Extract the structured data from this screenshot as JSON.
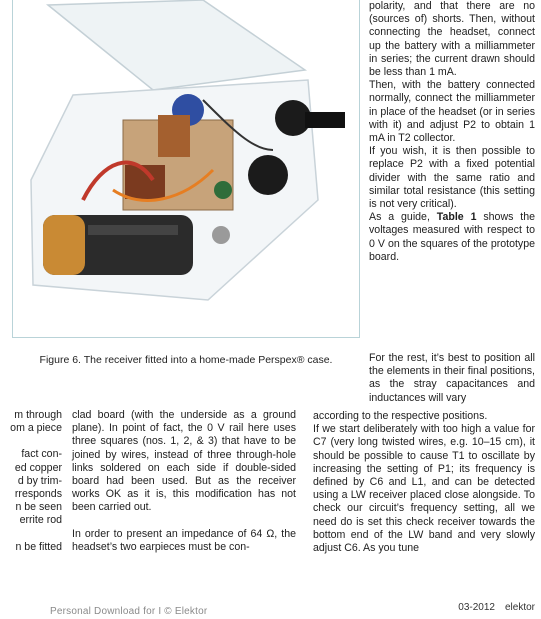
{
  "figure": {
    "caption": "Figure 6. The receiver fitted into a home-made Perspex® case.",
    "alt": "photo-receiver-in-perspex-case"
  },
  "right_column": {
    "paragraphs": [
      "polarity, and that there are no (sources of) shorts. Then, without connecting the headset, connect up the battery with a milliammeter in series; the current drawn should be less than 1 mA.",
      "Then, with the battery connected normally, connect the milliammeter in place of the headset (or in series with it) and adjust P2 to obtain 1 mA in T2 collector.",
      "If you wish, it is then possible to replace P2 with a fixed potential divider with the same ratio and similar total resistance (this setting is not very critical)."
    ],
    "p4_prefix": "As a guide, ",
    "p4_bold": "Table 1",
    "p4_suffix": " shows the voltages measured with respect to 0 V on the squares of the prototype board."
  },
  "col_c": {
    "text": "For the rest, it’s best to position all the elements in their final positions, as the stray capacitances and inductances will vary"
  },
  "col_a": {
    "lines": [
      "m through",
      "om a piece",
      "",
      "fact con-",
      "ed copper",
      "d by trim-",
      "rresponds",
      "n be seen",
      "errite rod",
      "",
      "n be fitted"
    ]
  },
  "col_b": {
    "p1": "clad board (with the underside as a ground plane). In point of fact, the 0 V rail here uses three squares (nos. 1, 2, & 3) that have to be joined by wires, instead of three through-hole links soldered on each side if double-sided board had been used. But as the receiver works OK as it is, this modification has not been carried out.",
    "p2": "In order to present an impedance of 64 Ω, the headset’s two earpieces must be con-"
  },
  "col_d": {
    "p1": "according to the respective positions.",
    "p2": "If we start deliberately with too high a value for C7 (very long twisted wires, e.g. 10–15 cm), it should be possible to cause T1 to oscillate by increasing the setting of P1; its frequency is defined by C6 and L1, and can be detected using a LW receiver placed close alongside. To check our circuit’s frequency setting, all we need do is set this check receiver towards the bottom end of the LW band and very slowly adjust C6. As you tune"
  },
  "footer": {
    "left": "Personal Download for I © Elektor",
    "issue": "03-2012",
    "brand": "elektor"
  }
}
